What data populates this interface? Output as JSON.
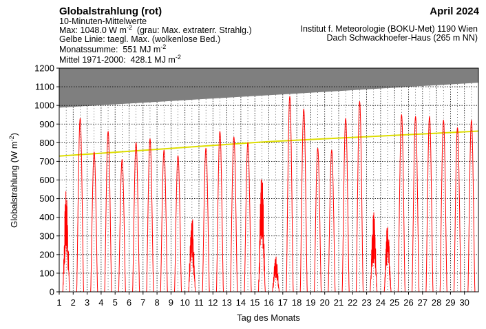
{
  "header": {
    "title": "Globalstrahlung (rot)",
    "month": "April 2024",
    "line1": "10-Minuten-Mittelwerte",
    "line2_a": "Max: 1048.0 W m",
    "line2_sup": "-2",
    "line2_b": "  (grau: Max. extraterr. Strahlg.)",
    "line3": "Gelbe Linie: taegl. Max. (wolkenlose Bed.)",
    "line4_a": "Monatssumme:  551 MJ m",
    "line4_sup": "-2",
    "line5_a": "Mittel 1971-2000:  428.1 MJ m",
    "line5_sup": "-2",
    "institute1": "Institut f. Meteorologie (BOKU-Met) 1190 Wien",
    "institute2": "Dach Schwackhoefer-Haus (265 m NN)"
  },
  "chart_data": {
    "type": "area",
    "xlabel": "Tag des Monats",
    "ylabel_a": "Globalstrahlung (W m",
    "ylabel_sup": "-2",
    "ylabel_b": ")",
    "xlim": [
      1,
      31
    ],
    "ylim": [
      0,
      1200
    ],
    "ytick_step": 100,
    "xticks": [
      "1",
      "2",
      "3",
      "4",
      "5",
      "6",
      "7",
      "8",
      "9",
      "10",
      "11",
      "12",
      "13",
      "14",
      "15",
      "16",
      "17",
      "18",
      "19",
      "20",
      "21",
      "22",
      "23",
      "24",
      "25",
      "26",
      "27",
      "28",
      "29",
      "30"
    ],
    "grid": true,
    "colors": {
      "global_radiation": "#ff0000",
      "clear_sky_max": "#dddd00",
      "extraterrestrial": "#7f7f7f"
    },
    "series": [
      {
        "key": "extraterrestrial",
        "points": [
          [
            1,
            988
          ],
          [
            31,
            1122
          ]
        ]
      },
      {
        "key": "clear_sky_max",
        "points": [
          [
            1,
            728
          ],
          [
            16,
            806
          ],
          [
            31,
            862
          ]
        ]
      },
      {
        "key": "global_radiation",
        "daily_max": [
          550,
          930,
          750,
          860,
          710,
          800,
          820,
          760,
          730,
          420,
          770,
          860,
          830,
          800,
          650,
          200,
          1048,
          980,
          770,
          760,
          930,
          1020,
          440,
          370,
          950,
          940,
          940,
          920,
          880,
          920
        ]
      }
    ]
  }
}
